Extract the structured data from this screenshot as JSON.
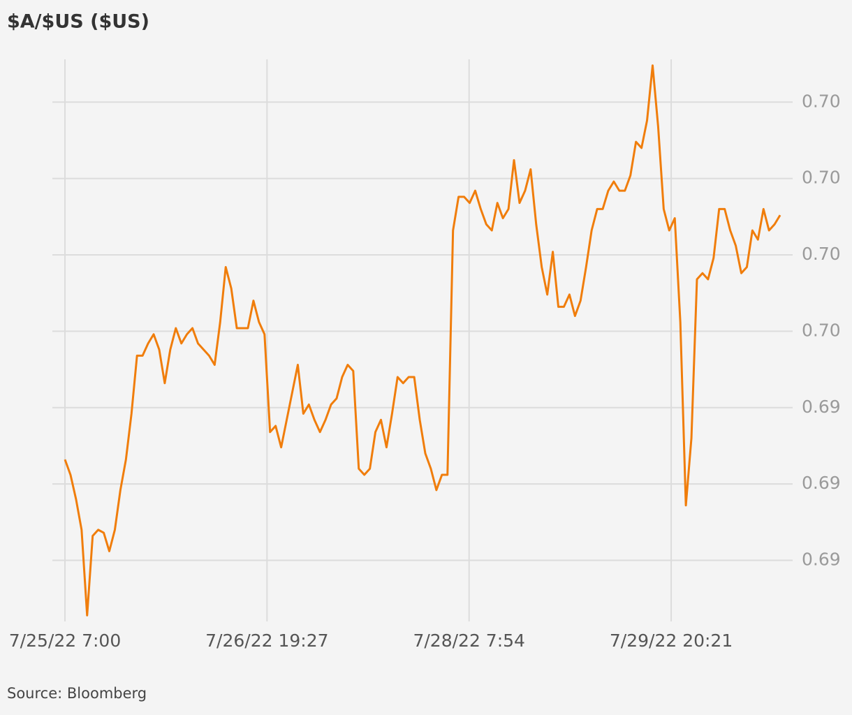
{
  "chart_data": {
    "type": "line",
    "title": "$A/$US ($US)",
    "source": "Source: Bloomberg",
    "color": "#f07d0b",
    "grid": true,
    "xlim": [
      "7/25/22 7:00",
      "7/30/22 17:00"
    ],
    "xticks": [
      "7/25/22 7:00",
      "7/26/22 19:27",
      "7/28/22 7:54",
      "7/29/22 20:21"
    ],
    "ylim": [
      0.6855,
      0.7039
    ],
    "yticks": [
      {
        "value": 0.6875,
        "label": "0.69"
      },
      {
        "value": 0.69,
        "label": "0.69"
      },
      {
        "value": 0.6925,
        "label": "0.69"
      },
      {
        "value": 0.695,
        "label": "0.70"
      },
      {
        "value": 0.6975,
        "label": "0.70"
      },
      {
        "value": 0.7,
        "label": "0.70"
      },
      {
        "value": 0.7025,
        "label": "0.70"
      }
    ],
    "x": [
      "7/25/22 7:00",
      "7/25/22 8:00",
      "7/25/22 9:00",
      "7/25/22 10:00",
      "7/25/22 11:00",
      "7/25/22 12:00",
      "7/25/22 13:00",
      "7/25/22 14:00",
      "7/25/22 15:00",
      "7/25/22 16:00",
      "7/25/22 17:00",
      "7/25/22 18:00",
      "7/25/22 19:00",
      "7/25/22 20:00",
      "7/25/22 21:00",
      "7/25/22 22:00",
      "7/25/22 23:00",
      "7/26/22 0:00",
      "7/26/22 1:00",
      "7/26/22 2:00",
      "7/26/22 3:00",
      "7/26/22 4:00",
      "7/26/22 5:00",
      "7/26/22 6:00",
      "7/26/22 7:00",
      "7/26/22 8:00",
      "7/26/22 9:00",
      "7/26/22 10:00",
      "7/26/22 11:00",
      "7/26/22 12:00",
      "7/26/22 13:00",
      "7/26/22 14:00",
      "7/26/22 15:00",
      "7/26/22 16:00",
      "7/26/22 17:00",
      "7/26/22 18:00",
      "7/26/22 19:00",
      "7/26/22 20:00",
      "7/26/22 21:00",
      "7/26/22 22:00",
      "7/26/22 23:00",
      "7/27/22 0:00",
      "7/27/22 1:00",
      "7/27/22 2:00",
      "7/27/22 3:00",
      "7/27/22 4:00",
      "7/27/22 5:00",
      "7/27/22 6:00",
      "7/27/22 7:00",
      "7/27/22 8:00",
      "7/27/22 9:00",
      "7/27/22 10:00",
      "7/27/22 11:00",
      "7/27/22 12:00",
      "7/27/22 13:00",
      "7/27/22 14:00",
      "7/27/22 15:00",
      "7/27/22 16:00",
      "7/27/22 17:00",
      "7/27/22 18:00",
      "7/27/22 19:00",
      "7/27/22 20:00",
      "7/27/22 21:00",
      "7/27/22 22:00",
      "7/27/22 23:00",
      "7/28/22 0:00",
      "7/28/22 1:00",
      "7/28/22 2:00",
      "7/28/22 3:00",
      "7/28/22 4:00",
      "7/28/22 5:00",
      "7/28/22 6:00",
      "7/28/22 7:00",
      "7/28/22 8:00",
      "7/28/22 9:00",
      "7/28/22 10:00",
      "7/28/22 11:00",
      "7/28/22 12:00",
      "7/28/22 13:00",
      "7/28/22 14:00",
      "7/28/22 15:00",
      "7/28/22 16:00",
      "7/28/22 17:00",
      "7/28/22 18:00",
      "7/28/22 19:00",
      "7/28/22 20:00",
      "7/28/22 21:00",
      "7/28/22 22:00",
      "7/28/22 23:00",
      "7/29/22 0:00",
      "7/29/22 1:00",
      "7/29/22 2:00",
      "7/29/22 3:00",
      "7/29/22 4:00",
      "7/29/22 5:00",
      "7/29/22 6:00",
      "7/29/22 7:00",
      "7/29/22 8:00",
      "7/29/22 9:00",
      "7/29/22 10:00",
      "7/29/22 11:00",
      "7/29/22 12:00",
      "7/29/22 13:00",
      "7/29/22 14:00",
      "7/29/22 15:00",
      "7/29/22 16:00",
      "7/29/22 17:00",
      "7/29/22 18:00",
      "7/29/22 19:00",
      "7/29/22 20:00",
      "7/29/22 21:00",
      "7/29/22 22:00",
      "7/29/22 23:00",
      "7/30/22 0:00",
      "7/30/22 1:00",
      "7/30/22 2:00",
      "7/30/22 3:00",
      "7/30/22 4:00",
      "7/30/22 5:00",
      "7/30/22 6:00",
      "7/30/22 7:00",
      "7/30/22 8:00",
      "7/30/22 9:00",
      "7/30/22 10:00",
      "7/30/22 11:00",
      "7/30/22 12:00",
      "7/30/22 13:00",
      "7/30/22 14:00",
      "7/30/22 15:00",
      "7/30/22 16:00"
    ],
    "values": [
      0.6908,
      0.6903,
      0.6895,
      0.6885,
      0.6857,
      0.6883,
      0.6885,
      0.6884,
      0.6878,
      0.6885,
      0.6898,
      0.6908,
      0.6923,
      0.6942,
      0.6942,
      0.6946,
      0.6949,
      0.6944,
      0.6933,
      0.6944,
      0.6951,
      0.6946,
      0.6949,
      0.6951,
      0.6946,
      0.6944,
      0.6942,
      0.6939,
      0.6953,
      0.6971,
      0.6964,
      0.6951,
      0.6951,
      0.6951,
      0.696,
      0.6953,
      0.6949,
      0.6917,
      0.6919,
      0.6912,
      0.6921,
      0.693,
      0.6939,
      0.6923,
      0.6926,
      0.6921,
      0.6917,
      0.6921,
      0.6926,
      0.6928,
      0.6935,
      0.6939,
      0.6937,
      0.6905,
      0.6903,
      0.6905,
      0.6917,
      0.6921,
      0.6912,
      0.6923,
      0.6935,
      0.6933,
      0.6935,
      0.6935,
      0.6921,
      0.691,
      0.6905,
      0.6898,
      0.6903,
      0.6903,
      0.6983,
      0.6994,
      0.6994,
      0.6992,
      0.6996,
      0.699,
      0.6985,
      0.6983,
      0.6992,
      0.6987,
      0.699,
      0.7006,
      0.6992,
      0.6996,
      0.7003,
      0.6985,
      0.6971,
      0.6962,
      0.6976,
      0.6958,
      0.6958,
      0.6962,
      0.6955,
      0.696,
      0.6971,
      0.6983,
      0.699,
      0.699,
      0.6996,
      0.6999,
      0.6996,
      0.6996,
      0.7001,
      0.7012,
      0.701,
      0.7019,
      0.7037,
      0.7017,
      0.699,
      0.6983,
      0.6987,
      0.6953,
      0.6893,
      0.6915,
      0.6967,
      0.6969,
      0.6967,
      0.6974,
      0.699,
      0.699,
      0.6983,
      0.6978,
      0.6969,
      0.6971,
      0.6983,
      0.698,
      0.699,
      0.6983,
      0.6985,
      0.6988
    ]
  }
}
